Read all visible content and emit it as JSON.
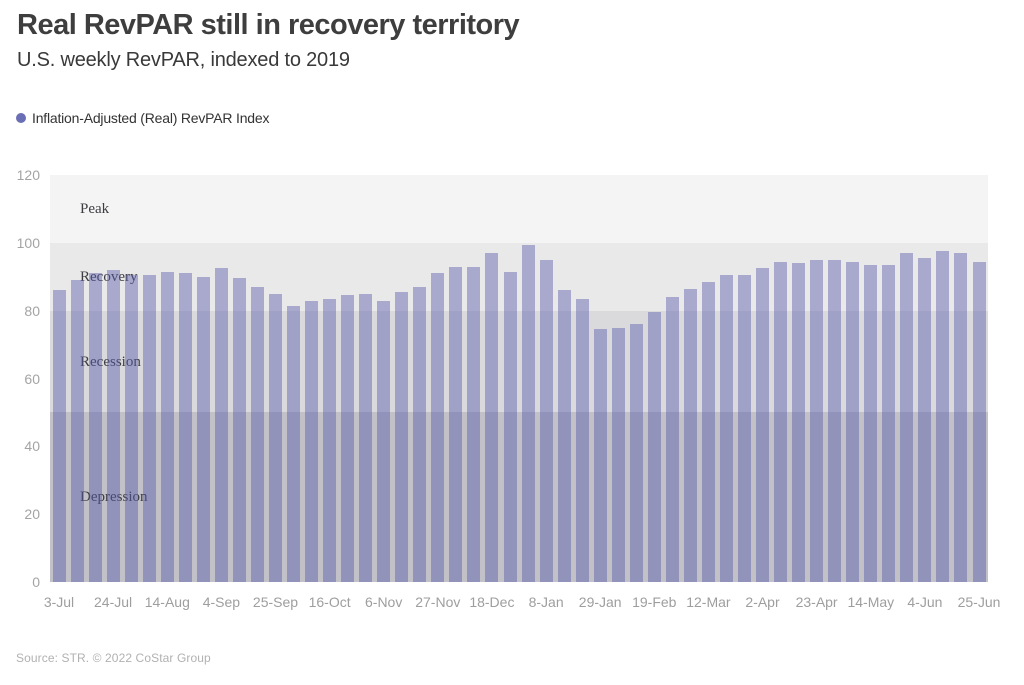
{
  "header": {
    "title": "Real RevPAR still in recovery territory",
    "subtitle": "U.S. weekly RevPAR, indexed to 2019"
  },
  "legend": {
    "label": "Inflation-Adjusted (Real) RevPAR Index",
    "marker_color": "#6a6eb5"
  },
  "footer": {
    "source": "Source: STR. © 2022 CoStar Group"
  },
  "chart_data": {
    "type": "bar",
    "title": "Real RevPAR still in recovery territory",
    "subtitle": "U.S. weekly RevPAR, indexed to 2019",
    "series_name": "Inflation-Adjusted (Real) RevPAR Index",
    "ylim": [
      0,
      120
    ],
    "y_ticks": [
      0,
      20,
      40,
      60,
      80,
      100,
      120
    ],
    "x_tick_labels": [
      "3-Jul",
      "24-Jul",
      "14-Aug",
      "4-Sep",
      "25-Sep",
      "16-Oct",
      "6-Nov",
      "27-Nov",
      "18-Dec",
      "8-Jan",
      "29-Jan",
      "19-Feb",
      "12-Mar",
      "2-Apr",
      "23-Apr",
      "14-May",
      "4-Jun",
      "25-Jun"
    ],
    "x_tick_every": 3,
    "values": [
      86,
      89,
      91,
      92,
      90.5,
      90.5,
      91.5,
      91,
      90,
      92.5,
      89.5,
      87,
      85,
      81.5,
      83,
      83.5,
      84.5,
      85,
      83,
      85.5,
      87,
      91,
      93,
      93,
      97,
      91.5,
      99.5,
      95,
      86,
      83.5,
      74.5,
      75,
      76,
      79.5,
      84,
      86.5,
      88.5,
      90.5,
      90.5,
      92.5,
      94.5,
      94,
      95,
      95,
      94.5,
      93.5,
      93.5,
      97,
      95.5,
      97.5,
      97,
      94.5
    ],
    "bar_color": "#585cab",
    "bar_opacity": 0.45,
    "grid": false,
    "legend_position": "top-left",
    "bands": [
      {
        "label": "Peak",
        "from": 100,
        "to": 120,
        "color": "#f4f4f4"
      },
      {
        "label": "Recovery",
        "from": 80,
        "to": 100,
        "color": "#e9e9ea"
      },
      {
        "label": "Recession",
        "from": 50,
        "to": 80,
        "color": "#dadadc"
      },
      {
        "label": "Depression",
        "from": 0,
        "to": 50,
        "color": "#c1c1c7"
      }
    ]
  }
}
